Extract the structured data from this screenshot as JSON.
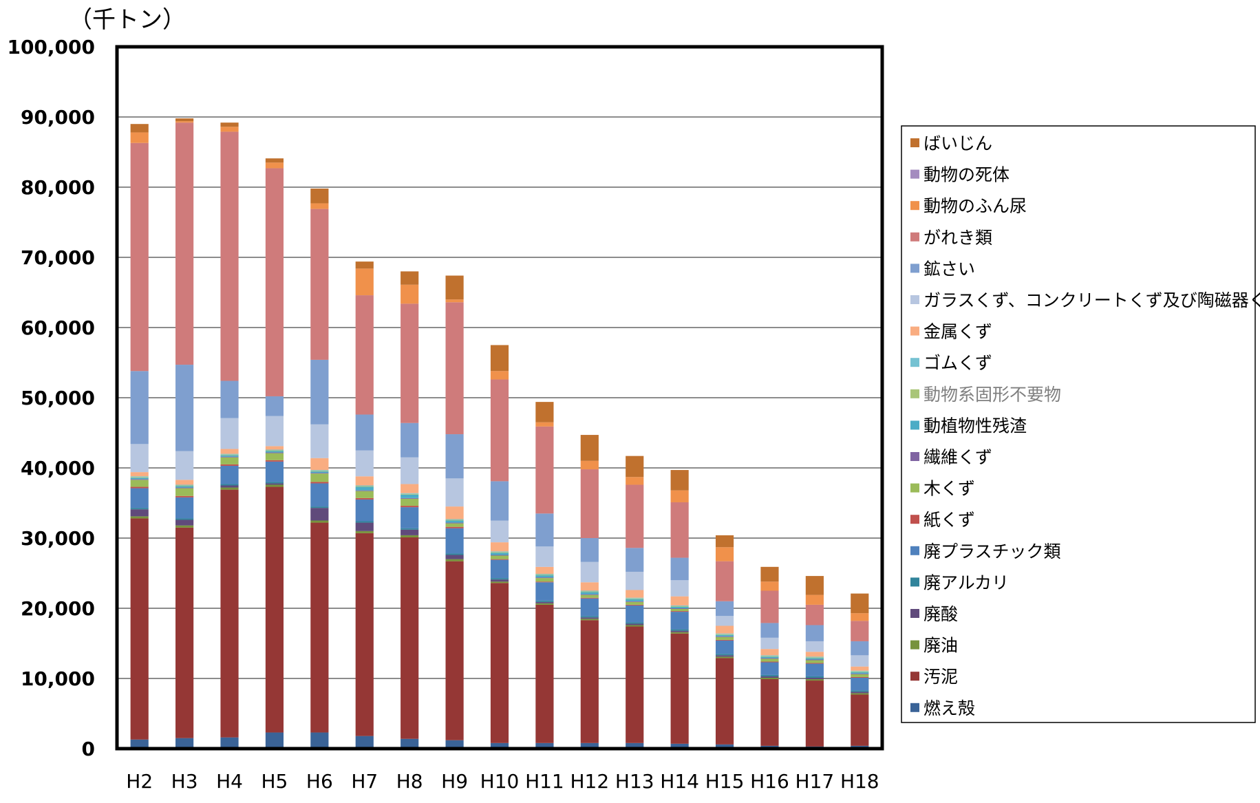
{
  "chart_data": {
    "type": "bar",
    "stacked": true,
    "title": "",
    "unit_label": "（千トン）",
    "ylim": [
      0,
      100000
    ],
    "yticks": [
      "0",
      "10,000",
      "20,000",
      "30,000",
      "40,000",
      "50,000",
      "60,000",
      "70,000",
      "80,000",
      "90,000",
      "100,000"
    ],
    "grid": true,
    "legend_position": "right",
    "categories": [
      "H2",
      "H3",
      "H4",
      "H5",
      "H6",
      "H7",
      "H8",
      "H9",
      "H10",
      "H11",
      "H12",
      "H13",
      "H14",
      "H15",
      "H16",
      "H17",
      "H18"
    ],
    "series": [
      {
        "name": "燃え殻",
        "color": "#3A6397",
        "values": [
          1300,
          1500,
          1600,
          2300,
          2300,
          1800,
          1400,
          1200,
          800,
          800,
          800,
          800,
          700,
          600,
          400,
          300,
          400
        ]
      },
      {
        "name": "汚泥",
        "color": "#953735",
        "values": [
          31500,
          30000,
          35300,
          35000,
          29900,
          28900,
          28700,
          25500,
          22800,
          19700,
          17500,
          16600,
          15700,
          12300,
          9500,
          9400,
          7300
        ]
      },
      {
        "name": "廃油",
        "color": "#77933C",
        "values": [
          300,
          300,
          300,
          300,
          300,
          300,
          300,
          300,
          200,
          200,
          200,
          200,
          200,
          200,
          200,
          200,
          200
        ]
      },
      {
        "name": "廃酸",
        "color": "#604A7B",
        "values": [
          1000,
          800,
          300,
          200,
          1800,
          1200,
          800,
          600,
          300,
          200,
          200,
          200,
          200,
          200,
          200,
          200,
          200
        ]
      },
      {
        "name": "廃アルカリ",
        "color": "#31849B",
        "values": [
          200,
          200,
          200,
          200,
          200,
          200,
          200,
          200,
          200,
          200,
          200,
          200,
          200,
          200,
          200,
          200,
          200
        ]
      },
      {
        "name": "廃プラスチック類",
        "color": "#4F81BD",
        "values": [
          2800,
          3000,
          2600,
          2900,
          3300,
          3100,
          3000,
          3600,
          2600,
          2600,
          2500,
          2400,
          2500,
          1900,
          1800,
          1800,
          1800
        ]
      },
      {
        "name": "紙くず",
        "color": "#C0504D",
        "values": [
          200,
          200,
          200,
          200,
          200,
          200,
          200,
          200,
          100,
          100,
          100,
          100,
          100,
          100,
          100,
          100,
          100
        ]
      },
      {
        "name": "木くず",
        "color": "#9BBB59",
        "values": [
          1000,
          1100,
          1000,
          1000,
          1200,
          1000,
          1000,
          500,
          500,
          500,
          400,
          400,
          300,
          400,
          400,
          400,
          400
        ]
      },
      {
        "name": "繊維くず",
        "color": "#8064A2",
        "values": [
          100,
          100,
          100,
          100,
          100,
          100,
          100,
          100,
          100,
          100,
          100,
          100,
          100,
          100,
          100,
          100,
          100
        ]
      },
      {
        "name": "動植物性残渣",
        "color": "#4BACC6",
        "values": [
          200,
          200,
          200,
          200,
          200,
          500,
          500,
          300,
          300,
          300,
          300,
          300,
          200,
          200,
          200,
          200,
          200
        ]
      },
      {
        "name": "動物系固形不要物",
        "color": "#A9C578",
        "values": [
          100,
          100,
          100,
          100,
          100,
          100,
          100,
          100,
          100,
          100,
          100,
          100,
          100,
          100,
          100,
          100,
          100
        ]
      },
      {
        "name": "ゴムくず",
        "color": "#75C2D2",
        "values": [
          100,
          100,
          100,
          100,
          100,
          100,
          100,
          100,
          100,
          100,
          100,
          100,
          100,
          100,
          100,
          100,
          100
        ]
      },
      {
        "name": "金属くず",
        "color": "#F9AD81",
        "values": [
          600,
          700,
          700,
          500,
          1700,
          1300,
          1300,
          1800,
          1300,
          1000,
          1200,
          1100,
          1300,
          1100,
          900,
          700,
          600
        ]
      },
      {
        "name": "ガラスくず、コンクリートくず及び陶磁器くず",
        "color": "#B7C6E0",
        "values": [
          4000,
          4100,
          4400,
          4300,
          4800,
          3700,
          3800,
          4000,
          3100,
          2900,
          2900,
          2600,
          2300,
          1400,
          1600,
          1500,
          1600
        ]
      },
      {
        "name": "鉱さい",
        "color": "#7F9FCF",
        "values": [
          10400,
          12300,
          5300,
          2800,
          9200,
          5100,
          4900,
          6300,
          5600,
          4700,
          3400,
          3400,
          3200,
          2100,
          2100,
          2300,
          2000
        ]
      },
      {
        "name": "がれき類",
        "color": "#CF7B7B",
        "values": [
          32500,
          34500,
          35500,
          32500,
          21500,
          17000,
          17000,
          18800,
          14500,
          12400,
          9800,
          9000,
          7900,
          5700,
          4600,
          2900,
          2900
        ]
      },
      {
        "name": "動物のふん尿",
        "color": "#F0914B",
        "values": [
          1500,
          200,
          700,
          800,
          800,
          3800,
          2700,
          400,
          1200,
          600,
          1200,
          1100,
          1700,
          2000,
          1300,
          1400,
          1100
        ]
      },
      {
        "name": "動物の死体",
        "color": "#A48CBF",
        "values": [
          0,
          0,
          0,
          0,
          0,
          0,
          0,
          0,
          0,
          0,
          0,
          0,
          0,
          0,
          0,
          0,
          0
        ]
      },
      {
        "name": "ばいじん",
        "color": "#C0712E",
        "values": [
          1200,
          400,
          600,
          600,
          2100,
          1000,
          1900,
          3400,
          3700,
          2900,
          3700,
          3000,
          2900,
          1700,
          2100,
          2700,
          2800
        ]
      }
    ]
  }
}
